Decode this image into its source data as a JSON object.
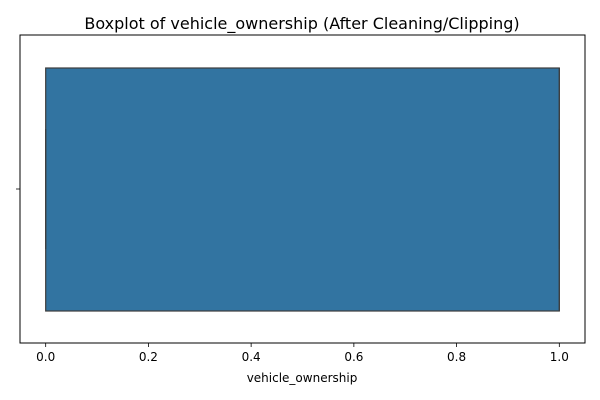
{
  "chart_data": {
    "type": "boxplot",
    "title": "Boxplot of vehicle_ownership (After Cleaning/Clipping)",
    "xlabel": "vehicle_ownership",
    "ylabel": "",
    "xlim": [
      -0.05,
      1.05
    ],
    "xticks": [
      0.0,
      0.2,
      0.4,
      0.6,
      0.8,
      1.0
    ],
    "xtick_labels": [
      "0.0",
      "0.2",
      "0.4",
      "0.6",
      "0.8",
      "1.0"
    ],
    "orientation": "horizontal",
    "box": {
      "min": 0.0,
      "q1": 0.0,
      "median": 1.0,
      "q3": 1.0,
      "max": 1.0
    },
    "box_color": "#3274a1",
    "edge_color": "#3d3d3d",
    "grid": false,
    "legend": "none"
  }
}
